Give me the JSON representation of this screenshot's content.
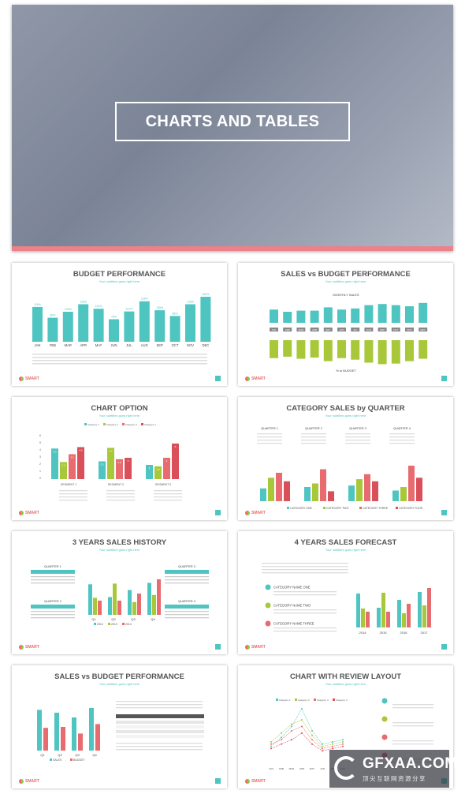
{
  "hero": {
    "title": "CHARTS AND TABLES"
  },
  "common": {
    "subtitle": "Your subtitles goes right here",
    "logo": "SMART"
  },
  "slides": [
    {
      "title": "BUDGET PERFORMANCE"
    },
    {
      "title": "SALES vs BUDGET PERFORMANCE",
      "top_label": "MONTHLY SALES",
      "bottom_label": "% to BUDGET"
    },
    {
      "title": "CHART OPTION"
    },
    {
      "title": "CATEGORY SALES by QUARTER"
    },
    {
      "title": "3 YEARS SALES HISTORY"
    },
    {
      "title": "4 YEARS SALES FORECAST"
    },
    {
      "title": "SALES vs BUDGET PERFORMANCE"
    },
    {
      "title": "CHART WITH REVIEW LAYOUT"
    }
  ],
  "colors": {
    "teal": "#4ec5c1",
    "green": "#a8c83a",
    "pink": "#e86b6f",
    "red": "#d9505a"
  },
  "chart_data": [
    {
      "type": "bar",
      "title": "BUDGET PERFORMANCE",
      "categories": [
        "JAN",
        "FEB",
        "MAR",
        "APR",
        "MAY",
        "JUN",
        "JUL",
        "AUG",
        "SEP",
        "OCT",
        "NOV",
        "DEC"
      ],
      "values": [
        116,
        80,
        100,
        125,
        110,
        75,
        101,
        135,
        105,
        86,
        125,
        150
      ],
      "value_labels": [
        "116%",
        "80%",
        "100%",
        "125%",
        "110%",
        "75%",
        "101%",
        "135%",
        "105%",
        "86%",
        "125%",
        "150%"
      ]
    },
    {
      "type": "bar",
      "title": "SALES vs BUDGET PERFORMANCE",
      "categories": [
        "JAN",
        "FEB",
        "MAR",
        "APR",
        "MAY",
        "JUN",
        "JUL",
        "AUG",
        "SEP",
        "OCT",
        "NOV",
        "DEC"
      ],
      "series": [
        {
          "values": [
            60,
            50,
            55,
            55,
            70,
            60,
            65,
            80,
            85,
            80,
            75,
            90
          ]
        },
        {
          "values": [
            60,
            55,
            62,
            58,
            70,
            60,
            65,
            75,
            80,
            78,
            70,
            62
          ]
        }
      ]
    },
    {
      "type": "bar",
      "title": "CHART OPTION",
      "categories": [
        "SEGMENT 1",
        "SEGMENT 2",
        "SEGMENT 3"
      ],
      "legend": [
        "Category 1",
        "Category 2",
        "Category 3",
        "Category 4"
      ],
      "series": [
        {
          "name": "Category 1",
          "values": [
            4.3,
            2.5,
            2
          ]
        },
        {
          "name": "Category 2",
          "values": [
            2.4,
            4.4,
            1.8
          ]
        },
        {
          "name": "Category 3",
          "values": [
            3.5,
            2.8,
            3
          ]
        },
        {
          "name": "Category 4",
          "values": [
            4.5,
            3,
            5
          ]
        }
      ],
      "ylim": [
        0,
        6
      ]
    },
    {
      "type": "bar",
      "title": "CATEGORY SALES by QUARTER",
      "categories": [
        "QUARTER 1",
        "QUARTER 2",
        "QUARTER 3",
        "QUARTER 4"
      ],
      "legend": [
        "CATEGORY ONE",
        "CATEGORY TWO",
        "CATEGORY THREE",
        "CATEGORY FOUR"
      ],
      "series": [
        {
          "name": "CATEGORY ONE",
          "values": [
            1.8,
            2,
            2.2,
            1.5
          ]
        },
        {
          "name": "CATEGORY TWO",
          "values": [
            3.3,
            2.5,
            3.1,
            2
          ]
        },
        {
          "name": "CATEGORY THREE",
          "values": [
            4,
            4.5,
            3.8,
            5
          ]
        },
        {
          "name": "CATEGORY FOUR",
          "values": [
            2.8,
            1.4,
            2.8,
            3.3
          ]
        }
      ]
    },
    {
      "type": "bar",
      "title": "3 YEARS SALES HISTORY",
      "categories": [
        "Q1",
        "Q2",
        "Q3",
        "Q4"
      ],
      "legend": [
        "2012",
        "2013",
        "2014"
      ],
      "series": [
        {
          "name": "2012",
          "values": [
            4.3,
            2.5,
            3.5,
            4.5
          ]
        },
        {
          "name": "2013",
          "values": [
            2.4,
            4.4,
            1.8,
            2.8
          ]
        },
        {
          "name": "2014",
          "values": [
            2,
            2,
            3,
            5
          ]
        }
      ]
    },
    {
      "type": "bar",
      "title": "4 YEARS SALES FORECAST",
      "categories": [
        "2014",
        "2015",
        "2016",
        "2017"
      ],
      "legend": [
        "CATEGORY NAME ONE",
        "CATEGORY NAME TWO",
        "CATEGORY NAME THREE"
      ],
      "series": [
        {
          "name": "CATEGORY NAME ONE",
          "values": [
            4.3,
            2.5,
            3.5,
            4.5
          ]
        },
        {
          "name": "CATEGORY NAME TWO",
          "values": [
            2.4,
            4.4,
            1.8,
            2.8
          ]
        },
        {
          "name": "CATEGORY NAME THREE",
          "values": [
            2,
            2,
            3,
            5
          ]
        }
      ]
    },
    {
      "type": "bar",
      "title": "SALES vs BUDGET PERFORMANCE",
      "categories": [
        "Q1",
        "Q2",
        "Q3",
        "Q4"
      ],
      "legend": [
        "SALES",
        "BUDGET"
      ],
      "series": [
        {
          "name": "SALES",
          "values": [
            4.3,
            4,
            3.5,
            4.5
          ]
        },
        {
          "name": "BUDGET",
          "values": [
            2.4,
            2.5,
            1.8,
            2.8
          ]
        }
      ]
    },
    {
      "type": "line",
      "title": "CHART WITH REVIEW LAYOUT",
      "categories": [
        "JAN",
        "FEB",
        "MAR",
        "APR",
        "MAY",
        "JUN",
        "JUL",
        "AUG"
      ],
      "legend": [
        "Category 1",
        "Category 2",
        "Category 3",
        "Category 4"
      ],
      "series": [
        {
          "name": "Category 1",
          "values": [
            800,
            1200,
            1700,
            2500,
            1500,
            900,
            1000,
            1100
          ]
        },
        {
          "name": "Category 2",
          "values": [
            1000,
            1400,
            1800,
            2000,
            1300,
            800,
            900,
            1000
          ]
        },
        {
          "name": "Category 3",
          "values": [
            900,
            1100,
            1500,
            1700,
            1100,
            700,
            800,
            900
          ]
        },
        {
          "name": "Category 4",
          "values": [
            700,
            900,
            1100,
            1400,
            900,
            600,
            700,
            800
          ]
        }
      ]
    }
  ],
  "watermark": {
    "main": "GFXAA.COM",
    "sub": "顶尖互联网资源分享"
  }
}
